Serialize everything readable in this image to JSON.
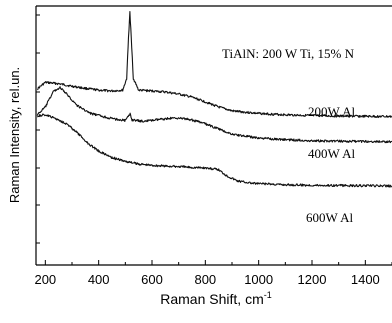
{
  "chart_data": {
    "type": "line",
    "title": "TiAlN: 200 W Ti, 15% N",
    "xlabel": "Raman Shift, cm",
    "xlabel_superscript": "-1",
    "ylabel": "Raman Intensity, rel.un.",
    "xlim": [
      165,
      1500
    ],
    "x_ticks": [
      "200",
      "400",
      "600",
      "800",
      "1000",
      "1200",
      "1400"
    ],
    "y_tick_labels": "none",
    "grid": false,
    "series": [
      {
        "name": "200W Al",
        "points": [
          [
            170,
            0.68
          ],
          [
            200,
            0.705
          ],
          [
            250,
            0.7
          ],
          [
            300,
            0.69
          ],
          [
            350,
            0.682
          ],
          [
            400,
            0.675
          ],
          [
            450,
            0.672
          ],
          [
            490,
            0.675
          ],
          [
            505,
            0.72
          ],
          [
            512,
            0.88
          ],
          [
            517,
            0.975
          ],
          [
            522,
            0.88
          ],
          [
            530,
            0.72
          ],
          [
            550,
            0.675
          ],
          [
            600,
            0.672
          ],
          [
            650,
            0.668
          ],
          [
            700,
            0.66
          ],
          [
            750,
            0.648
          ],
          [
            800,
            0.63
          ],
          [
            850,
            0.61
          ],
          [
            900,
            0.595
          ],
          [
            1000,
            0.585
          ],
          [
            1100,
            0.58
          ],
          [
            1200,
            0.577
          ],
          [
            1300,
            0.575
          ],
          [
            1400,
            0.574
          ],
          [
            1500,
            0.573
          ]
        ]
      },
      {
        "name": "400W Al",
        "points": [
          [
            170,
            0.58
          ],
          [
            200,
            0.61
          ],
          [
            230,
            0.67
          ],
          [
            255,
            0.685
          ],
          [
            280,
            0.66
          ],
          [
            320,
            0.615
          ],
          [
            370,
            0.585
          ],
          [
            450,
            0.565
          ],
          [
            500,
            0.558
          ],
          [
            513,
            0.575
          ],
          [
            518,
            0.585
          ],
          [
            525,
            0.56
          ],
          [
            560,
            0.555
          ],
          [
            600,
            0.558
          ],
          [
            650,
            0.565
          ],
          [
            700,
            0.568
          ],
          [
            750,
            0.56
          ],
          [
            800,
            0.545
          ],
          [
            850,
            0.525
          ],
          [
            900,
            0.505
          ],
          [
            1000,
            0.49
          ],
          [
            1100,
            0.484
          ],
          [
            1200,
            0.48
          ],
          [
            1300,
            0.478
          ],
          [
            1400,
            0.477
          ],
          [
            1500,
            0.476
          ]
        ]
      },
      {
        "name": "600W Al",
        "points": [
          [
            170,
            0.575
          ],
          [
            200,
            0.58
          ],
          [
            240,
            0.565
          ],
          [
            280,
            0.545
          ],
          [
            320,
            0.51
          ],
          [
            360,
            0.47
          ],
          [
            400,
            0.44
          ],
          [
            450,
            0.415
          ],
          [
            500,
            0.4
          ],
          [
            550,
            0.39
          ],
          [
            600,
            0.385
          ],
          [
            650,
            0.382
          ],
          [
            700,
            0.38
          ],
          [
            750,
            0.377
          ],
          [
            800,
            0.375
          ],
          [
            850,
            0.368
          ],
          [
            880,
            0.345
          ],
          [
            920,
            0.325
          ],
          [
            980,
            0.315
          ],
          [
            1100,
            0.31
          ],
          [
            1200,
            0.308
          ],
          [
            1300,
            0.307
          ],
          [
            1400,
            0.306
          ],
          [
            1500,
            0.305
          ]
        ]
      }
    ],
    "colors": {
      "line": "#111111",
      "axis": "#000000",
      "text": "#000000"
    }
  }
}
